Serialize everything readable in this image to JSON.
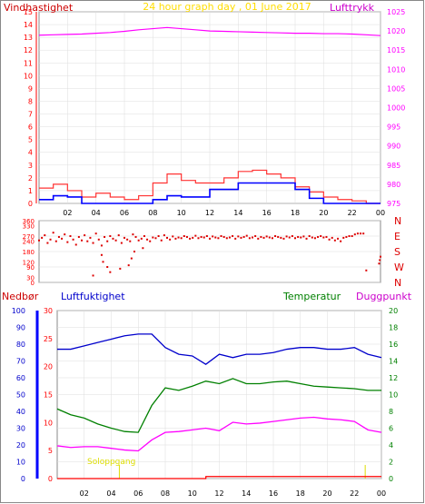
{
  "colors": {
    "wind": "#ff0000",
    "gust": "#ff3333",
    "avg_wind": "#0000ff",
    "pressure": "#ff00ff",
    "direction": "#dd0000",
    "rain": "#ff0000",
    "humidity": "#0000cc",
    "temperature": "#008000",
    "dewpoint": "#ff00ff",
    "title": "#ffdd00",
    "event": "#dddd00",
    "grid": "#dddddd"
  },
  "chart_data": [
    {
      "type": "line",
      "title": "24 hour graph day , 01 June 2017",
      "left_label": "Vindhastighet",
      "right_label": "Lufttrykk",
      "x_ticks": [
        "02",
        "04",
        "06",
        "08",
        "10",
        "12",
        "14",
        "16",
        "18",
        "20",
        "22",
        "00"
      ],
      "left_ylim": [
        0,
        15
      ],
      "left_ticks": [
        "0",
        "1",
        "2",
        "3",
        "4",
        "5",
        "6",
        "7",
        "8",
        "9",
        "10",
        "11",
        "12",
        "13",
        "14",
        "15"
      ],
      "right_ylim": [
        975,
        1025
      ],
      "right_ticks": [
        "975",
        "980",
        "985",
        "990",
        "995",
        "1000",
        "1005",
        "1010",
        "1015",
        "1020",
        "1025"
      ],
      "series": [
        {
          "key": "pressure",
          "axis": "right",
          "x": [
            0,
            1,
            2,
            3,
            4,
            5,
            6,
            7,
            8,
            9,
            10,
            11,
            12,
            13,
            14,
            15,
            16,
            17,
            18,
            19,
            20,
            21,
            22,
            23,
            24
          ],
          "values": [
            1018.9,
            1019.0,
            1019.1,
            1019.2,
            1019.4,
            1019.6,
            1019.9,
            1020.3,
            1020.6,
            1020.9,
            1020.6,
            1020.3,
            1020.0,
            1019.9,
            1019.8,
            1019.7,
            1019.6,
            1019.5,
            1019.4,
            1019.4,
            1019.3,
            1019.3,
            1019.2,
            1019.0,
            1018.8
          ]
        },
        {
          "key": "gust",
          "axis": "left",
          "x": [
            0,
            1,
            2,
            3,
            4,
            5,
            6,
            7,
            8,
            9,
            10,
            11,
            12,
            13,
            14,
            15,
            16,
            17,
            18,
            19,
            20,
            21,
            22,
            23,
            24
          ],
          "values": [
            1.2,
            1.5,
            1.0,
            0.5,
            0.8,
            0.5,
            0.3,
            0.6,
            1.6,
            2.3,
            1.8,
            1.6,
            1.6,
            2.0,
            2.5,
            2.6,
            2.3,
            2.0,
            1.3,
            0.9,
            0.5,
            0.3,
            0.2,
            0.0,
            0.0
          ]
        },
        {
          "key": "avg_wind",
          "axis": "left",
          "x": [
            0,
            1,
            2,
            3,
            4,
            5,
            6,
            7,
            8,
            9,
            10,
            11,
            12,
            13,
            14,
            15,
            16,
            17,
            18,
            19,
            20,
            21,
            22,
            23,
            24
          ],
          "values": [
            0.3,
            0.6,
            0.5,
            0.0,
            0.0,
            0.0,
            0.0,
            0.0,
            0.3,
            0.6,
            0.5,
            0.5,
            1.1,
            1.1,
            1.6,
            1.6,
            1.6,
            1.6,
            1.1,
            0.4,
            0.0,
            0.0,
            0.0,
            0.0,
            0.0
          ]
        }
      ]
    },
    {
      "type": "scatter",
      "ylim": [
        0,
        360
      ],
      "y_ticks": [
        "0",
        "30",
        "60",
        "90",
        "120",
        "150",
        "180",
        "210",
        "240",
        "270",
        "300",
        "330",
        "360"
      ],
      "compass": [
        "N",
        "W",
        "S",
        "E",
        "N"
      ],
      "x": [
        0.0,
        0.2,
        0.4,
        0.6,
        0.8,
        1.0,
        1.2,
        1.4,
        1.6,
        1.8,
        2.0,
        2.2,
        2.4,
        2.6,
        2.8,
        3.0,
        3.2,
        3.4,
        3.6,
        3.8,
        4.0,
        4.2,
        4.4,
        4.6,
        4.8,
        5.0,
        5.2,
        5.4,
        5.6,
        5.8,
        6.0,
        6.2,
        6.4,
        6.6,
        6.8,
        7.0,
        7.2,
        7.4,
        7.6,
        7.8,
        8.0,
        8.2,
        8.4,
        8.6,
        8.8,
        9.0,
        9.2,
        9.4,
        9.6,
        9.8,
        10.0,
        10.2,
        10.4,
        10.6,
        10.8,
        11.0,
        11.2,
        11.4,
        11.6,
        11.8,
        12.0,
        12.2,
        12.4,
        12.6,
        12.8,
        13.0,
        13.2,
        13.4,
        13.6,
        13.8,
        14.0,
        14.2,
        14.4,
        14.6,
        14.8,
        15.0,
        15.2,
        15.4,
        15.6,
        15.8,
        16.0,
        16.2,
        16.4,
        16.6,
        16.8,
        17.0,
        17.2,
        17.4,
        17.6,
        17.8,
        18.0,
        18.2,
        18.4,
        18.6,
        18.8,
        19.0,
        19.2,
        19.4,
        19.6,
        19.8,
        20.0,
        20.2,
        20.4,
        20.6,
        20.8,
        21.0,
        21.2,
        21.4,
        21.6,
        21.8,
        22.0,
        22.2,
        22.4,
        22.6,
        22.8,
        23.0,
        23.9,
        23.95,
        24.0,
        4.5,
        4.8,
        5.0,
        6.3,
        6.5,
        6.7,
        3.8,
        4.4,
        7.3,
        5.7
      ],
      "values": [
        245,
        260,
        275,
        230,
        250,
        290,
        240,
        265,
        255,
        280,
        235,
        270,
        250,
        220,
        265,
        245,
        275,
        240,
        260,
        230,
        285,
        250,
        215,
        265,
        240,
        270,
        255,
        245,
        275,
        230,
        260,
        250,
        240,
        280,
        265,
        245,
        255,
        270,
        250,
        240,
        262,
        258,
        270,
        245,
        275,
        260,
        250,
        268,
        255,
        262,
        258,
        270,
        265,
        255,
        260,
        272,
        258,
        265,
        262,
        270,
        255,
        268,
        262,
        258,
        270,
        265,
        258,
        262,
        270,
        255,
        268,
        260,
        265,
        272,
        258,
        262,
        270,
        255,
        265,
        260,
        268,
        262,
        258,
        270,
        265,
        260,
        255,
        268,
        262,
        270,
        258,
        265,
        262,
        268,
        255,
        270,
        262,
        258,
        265,
        270,
        262,
        265,
        250,
        260,
        245,
        255,
        240,
        260,
        265,
        270,
        270,
        280,
        285,
        285,
        285,
        70,
        110,
        130,
        150,
        120,
        90,
        60,
        100,
        140,
        180,
        40,
        160,
        200,
        80
      ]
    },
    {
      "type": "line",
      "labels": {
        "rain": "Nedbør",
        "humidity": "Luftfuktighet",
        "temperature": "Temperatur",
        "dewpoint": "Duggpunkt"
      },
      "x_ticks": [
        "02",
        "04",
        "06",
        "08",
        "10",
        "12",
        "14",
        "16",
        "18",
        "20",
        "22",
        "00"
      ],
      "rain_axis": {
        "ylim": [
          0,
          100
        ],
        "ticks": [
          "0",
          "10",
          "20",
          "30",
          "40",
          "50",
          "60",
          "70",
          "80",
          "90",
          "100"
        ]
      },
      "humidity_axis": {
        "ylim": [
          0,
          30
        ],
        "ticks": [
          "0",
          "5",
          "10",
          "15",
          "20",
          "25",
          "30"
        ]
      },
      "temp_axis": {
        "ylim": [
          0,
          20
        ],
        "ticks": [
          "0",
          "2",
          "4",
          "6",
          "8",
          "10",
          "12",
          "14",
          "16",
          "18",
          "20"
        ]
      },
      "annotation": "Soloppgang",
      "series": [
        {
          "key": "humidity",
          "axis": "rain",
          "x": [
            0,
            1,
            2,
            3,
            4,
            5,
            6,
            7,
            8,
            9,
            10,
            11,
            12,
            13,
            14,
            15,
            16,
            17,
            18,
            19,
            20,
            21,
            22,
            23,
            24
          ],
          "values": [
            77,
            77,
            79,
            81,
            83,
            85,
            86,
            86,
            78,
            74,
            73,
            68,
            74,
            72,
            74,
            74,
            75,
            77,
            78,
            78,
            77,
            77,
            78,
            74,
            72
          ]
        },
        {
          "key": "temperature",
          "axis": "temp",
          "x": [
            0,
            1,
            2,
            3,
            4,
            5,
            6,
            7,
            8,
            9,
            10,
            11,
            12,
            13,
            14,
            15,
            16,
            17,
            18,
            19,
            20,
            21,
            22,
            23,
            24
          ],
          "values": [
            8.3,
            7.6,
            7.2,
            6.5,
            6.0,
            5.6,
            5.5,
            8.7,
            10.8,
            10.5,
            11.0,
            11.6,
            11.3,
            11.9,
            11.3,
            11.3,
            11.5,
            11.6,
            11.3,
            11.0,
            10.9,
            10.8,
            10.7,
            10.5,
            10.5
          ]
        },
        {
          "key": "dewpoint",
          "axis": "temp",
          "x": [
            0,
            1,
            2,
            3,
            4,
            5,
            6,
            7,
            8,
            9,
            10,
            11,
            12,
            13,
            14,
            15,
            16,
            17,
            18,
            19,
            20,
            21,
            22,
            23,
            24
          ],
          "values": [
            3.9,
            3.7,
            3.8,
            3.8,
            3.6,
            3.4,
            3.3,
            4.6,
            5.5,
            5.6,
            5.8,
            6.0,
            5.7,
            6.7,
            6.5,
            6.6,
            6.8,
            7.0,
            7.2,
            7.3,
            7.1,
            7.0,
            6.8,
            5.8,
            5.5
          ]
        },
        {
          "key": "rain",
          "axis": "rain",
          "x": [
            0,
            11.0,
            11.01,
            24
          ],
          "values": [
            0,
            0,
            1.2,
            1.2
          ]
        }
      ]
    }
  ]
}
